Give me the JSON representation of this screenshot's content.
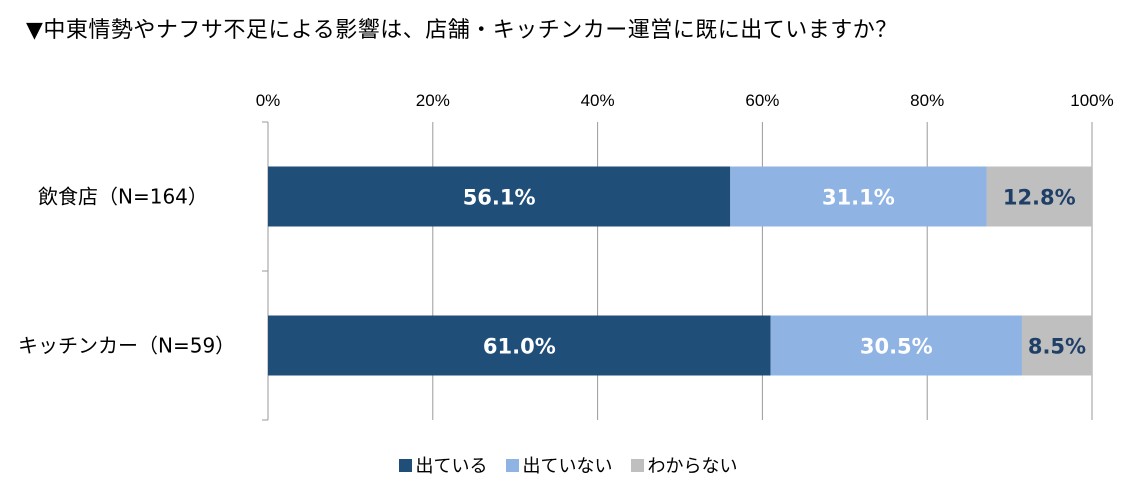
{
  "title": "▼中東情勢やナフサ不足による影響は、店舗・キッチンカー運営に既に出ていますか？",
  "chart_data": {
    "type": "bar",
    "orientation": "horizontal",
    "stacked": "100%",
    "categories": [
      "飲食店（N=164）",
      "キッチンカー（N=59）"
    ],
    "series": [
      {
        "name": "出ている",
        "color": "#1f4e79",
        "values": [
          56.1,
          61.0
        ],
        "labels": [
          "56.1%",
          "61.0%"
        ]
      },
      {
        "name": "出ていない",
        "color": "#8fb4e3",
        "values": [
          31.1,
          30.5
        ],
        "labels": [
          "31.1%",
          "30.5%"
        ]
      },
      {
        "name": "わからない",
        "color": "#bfbfbf",
        "values": [
          12.8,
          8.5
        ],
        "labels": [
          "12.8%",
          "8.5%"
        ]
      }
    ],
    "x_ticks": [
      "0%",
      "20%",
      "40%",
      "60%",
      "80%",
      "100%"
    ],
    "xlim": [
      0,
      100
    ],
    "grid": true,
    "legend": "bottom-center"
  }
}
